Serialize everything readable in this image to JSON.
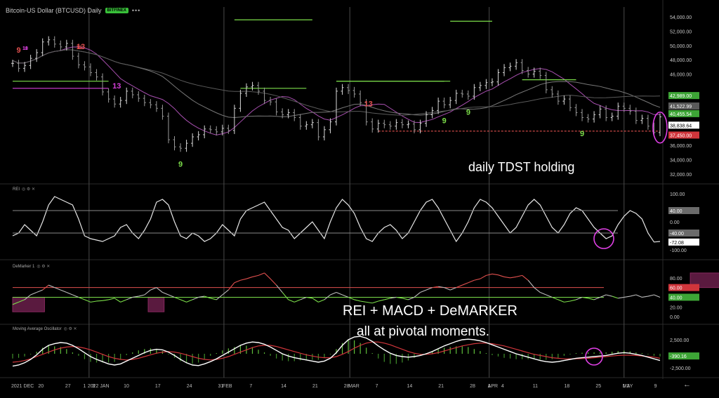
{
  "header": {
    "title": "Bitcoin-US Dollar (BTCUSD) Daily",
    "exchange": "BITFINEX",
    "menu": "•••"
  },
  "panes": {
    "rei_label": "REI",
    "demarker_label": "DeMarker 1",
    "mao_label": "Moving Average Oscillator",
    "icons": "◎ ⚙ ✕"
  },
  "annotations": {
    "tdst": "daily TDST holding",
    "combo_line1": "REI + MACD + DeMARKER",
    "combo_line2": "all at pivotal moments."
  },
  "nav": {
    "back": "←"
  },
  "colors": {
    "bg": "#000000",
    "up": "#7cde4a",
    "down": "#e0504e",
    "magenta": "#d53fd9",
    "grid": "#3a3a3a"
  },
  "chart_data": [
    {
      "type": "line",
      "name": "price",
      "ylim": [
        31000,
        55000
      ],
      "yticks": [
        {
          "v": 54000,
          "label": "54,000.00"
        },
        {
          "v": 52000,
          "label": "52,000.00"
        },
        {
          "v": 50000,
          "label": "50,000.00"
        },
        {
          "v": 48000,
          "label": "48,000.00"
        },
        {
          "v": 46000,
          "label": "46,000.00"
        },
        {
          "v": 36000,
          "label": "36,000.00"
        },
        {
          "v": 34000,
          "label": "34,000.00"
        },
        {
          "v": 32000,
          "label": "32,000.00"
        }
      ],
      "price_tags": [
        {
          "v": 42989.0,
          "label": "42,989.00",
          "color": "#3da536"
        },
        {
          "v": 41522.99,
          "label": "41,522.99",
          "color": "#5a5a5a"
        },
        {
          "v": 40455.54,
          "label": "40,455.54",
          "color": "#3da536"
        },
        {
          "v": 38838.64,
          "label": "38,838.64",
          "color": "#ffffff"
        },
        {
          "v": 37450.0,
          "label": "37,450.00",
          "color": "#d0353b"
        }
      ],
      "close": [
        47500,
        46800,
        47200,
        48200,
        49000,
        50500,
        50800,
        50200,
        49800,
        50300,
        48500,
        47300,
        47000,
        46200,
        45600,
        43500,
        42500,
        41800,
        42300,
        43600,
        43100,
        42600,
        42000,
        41700,
        41200,
        40100,
        36800,
        35800,
        35600,
        36300,
        37200,
        37500,
        38300,
        38200,
        37900,
        38400,
        38100,
        41200,
        43300,
        44200,
        44400,
        43600,
        42300,
        42100,
        40700,
        40300,
        40600,
        39900,
        38700,
        38900,
        39200,
        37200,
        38200,
        39300,
        43600,
        44100,
        43700,
        43200,
        42000,
        39300,
        38300,
        39100,
        38900,
        38700,
        39200,
        38900,
        39000,
        38200,
        39100,
        40300,
        40900,
        42200,
        41700,
        42300,
        43300,
        43200,
        42900,
        44100,
        44400,
        44800,
        44900,
        46200,
        46900,
        47100,
        47600,
        46500,
        46000,
        46400,
        45800,
        43800,
        43200,
        42200,
        42500,
        41300,
        40600,
        39900,
        39700,
        40300,
        41100,
        39900,
        40100,
        41500,
        41200,
        40800,
        39500,
        39800,
        38700,
        37800,
        40000
      ],
      "tdst_levels": [
        {
          "from": 0,
          "to": 16,
          "v": 45000,
          "color": "#7cde4a"
        },
        {
          "from": 0,
          "to": 16,
          "v": 44000,
          "color": "#d53fd9"
        },
        {
          "from": 38,
          "to": 49,
          "v": 44000,
          "color": "#7cde4a"
        },
        {
          "from": 54,
          "to": 73,
          "v": 45000,
          "color": "#7cde4a"
        },
        {
          "from": 54,
          "to": 72,
          "v": 45000,
          "color": "#7cde4a"
        },
        {
          "from": 85,
          "to": 94,
          "v": 45200,
          "color": "#7cde4a"
        },
        {
          "from": 61,
          "to": 108,
          "v": 38000,
          "color": "#e0504e"
        },
        {
          "from": 37,
          "to": 50,
          "v": 53600,
          "color": "#7cde4a"
        },
        {
          "from": 73,
          "to": 80,
          "v": 53400,
          "color": "#7cde4a"
        }
      ],
      "setup_labels": [
        {
          "i": 1,
          "text": "9",
          "color": "#e0504e"
        },
        {
          "i": 2,
          "text": "10",
          "color": "#d53fd9"
        },
        {
          "i": 2,
          "text": "11",
          "color": "#d53fd9"
        },
        {
          "i": 11,
          "text": "12",
          "color": "#e0504e"
        },
        {
          "i": 11,
          "text": "13",
          "color": "#e0504e"
        },
        {
          "i": 17,
          "text": "13",
          "color": "#d53fd9"
        },
        {
          "i": 28,
          "text": "9",
          "color": "#7cde4a"
        },
        {
          "i": 59,
          "text": "13",
          "color": "#e0504e"
        },
        {
          "i": 72,
          "text": "9",
          "color": "#7cde4a"
        },
        {
          "i": 76,
          "text": "9",
          "color": "#7cde4a"
        },
        {
          "i": 95,
          "text": "9",
          "color": "#7cde4a"
        }
      ]
    },
    {
      "type": "line",
      "name": "REI",
      "ylim": [
        -110,
        110
      ],
      "yticks": [
        {
          "v": 100,
          "label": "100.00"
        },
        {
          "v": 40,
          "label": "40.00",
          "tag": true,
          "color": "#6b6b6b"
        },
        {
          "v": 0,
          "label": "0.00"
        },
        {
          "v": -40,
          "label": "-40.00",
          "tag": true,
          "color": "#6b6b6b"
        },
        {
          "v": -72.08,
          "label": "-72.08",
          "tag": true,
          "color": "#ffffff"
        },
        {
          "v": -100,
          "label": "-100.00"
        }
      ],
      "levels": [
        40,
        -40
      ],
      "values": [
        -50,
        -40,
        -10,
        -30,
        -50,
        0,
        60,
        90,
        80,
        70,
        60,
        10,
        -50,
        -60,
        -65,
        -70,
        -60,
        -50,
        -20,
        -10,
        -40,
        -60,
        -30,
        10,
        70,
        80,
        60,
        0,
        -50,
        -60,
        -40,
        -50,
        -70,
        -60,
        -40,
        -10,
        -30,
        -50,
        10,
        40,
        50,
        60,
        70,
        40,
        10,
        -20,
        -30,
        -60,
        -40,
        -20,
        0,
        -30,
        -60,
        0,
        50,
        80,
        60,
        30,
        -20,
        -60,
        -70,
        -40,
        -20,
        -10,
        -30,
        -60,
        -40,
        0,
        40,
        70,
        80,
        50,
        10,
        -30,
        -70,
        -40,
        0,
        50,
        80,
        70,
        50,
        20,
        -10,
        -40,
        -20,
        20,
        60,
        80,
        60,
        20,
        -20,
        -40,
        -10,
        30,
        50,
        40,
        10,
        -20,
        -40,
        -60,
        -50,
        -10,
        20,
        40,
        30,
        10,
        -40,
        -72,
        -70
      ]
    },
    {
      "type": "line",
      "name": "DeMarker 1",
      "ylim": [
        -0.1,
        1.0
      ],
      "yticks": [
        {
          "v": 0.8,
          "label": "80.00"
        },
        {
          "v": 0.6,
          "label": "60.00",
          "tag": true,
          "color": "#d0353b"
        },
        {
          "v": 0.4,
          "label": "40.00",
          "tag": true,
          "color": "#3da536"
        },
        {
          "v": 0.2,
          "label": "20.00"
        },
        {
          "v": 0.0,
          "label": "0.00"
        }
      ],
      "levels": [
        0.6,
        0.4
      ],
      "boxes": [
        {
          "from": 0,
          "to": 4,
          "lo": 0.1,
          "hi": 0.4
        },
        {
          "from": 17,
          "to": 19,
          "lo": 0.1,
          "hi": 0.4
        },
        {
          "from": 85,
          "to": 89,
          "lo": 0.6,
          "hi": 0.9
        }
      ],
      "values": [
        0.25,
        0.3,
        0.35,
        0.45,
        0.5,
        0.55,
        0.65,
        0.6,
        0.55,
        0.5,
        0.45,
        0.4,
        0.35,
        0.3,
        0.32,
        0.33,
        0.35,
        0.38,
        0.3,
        0.35,
        0.4,
        0.42,
        0.45,
        0.55,
        0.6,
        0.5,
        0.45,
        0.4,
        0.35,
        0.3,
        0.35,
        0.4,
        0.42,
        0.38,
        0.35,
        0.45,
        0.55,
        0.7,
        0.75,
        0.78,
        0.82,
        0.85,
        0.9,
        0.78,
        0.65,
        0.5,
        0.35,
        0.3,
        0.35,
        0.4,
        0.38,
        0.3,
        0.35,
        0.45,
        0.5,
        0.45,
        0.4,
        0.35,
        0.32,
        0.3,
        0.28,
        0.32,
        0.35,
        0.38,
        0.4,
        0.38,
        0.35,
        0.4,
        0.5,
        0.55,
        0.6,
        0.62,
        0.6,
        0.55,
        0.6,
        0.65,
        0.7,
        0.75,
        0.78,
        0.85,
        0.88,
        0.86,
        0.82,
        0.8,
        0.82,
        0.85,
        0.75,
        0.6,
        0.5,
        0.45,
        0.4,
        0.35,
        0.3,
        0.32,
        0.35,
        0.4,
        0.38,
        0.35,
        0.4,
        0.45,
        0.42,
        0.38,
        0.4,
        0.42,
        0.45,
        0.4,
        0.42,
        0.45,
        0.4
      ]
    },
    {
      "type": "line",
      "name": "Moving Average Oscillator",
      "ylim": [
        -3500,
        4000
      ],
      "yticks": [
        {
          "v": 2500,
          "label": "2,500.00"
        },
        {
          "v": -390.16,
          "label": "-390.16",
          "tag": true,
          "color": "#3da536"
        },
        {
          "v": -2500,
          "label": "-2,500.00"
        }
      ],
      "fast": [
        -2200,
        -2000,
        -1600,
        -1000,
        -200,
        800,
        1500,
        1800,
        2000,
        1900,
        1500,
        900,
        200,
        -500,
        -1000,
        -1400,
        -1800,
        -2000,
        -1800,
        -1300,
        -800,
        -300,
        200,
        600,
        800,
        700,
        300,
        -300,
        -1000,
        -1600,
        -2000,
        -2100,
        -1800,
        -1400,
        -900,
        -300,
        300,
        900,
        1500,
        1900,
        2100,
        2000,
        1700,
        1200,
        600,
        0,
        -400,
        -700,
        -900,
        -1100,
        -1300,
        -1500,
        -1300,
        -800,
        200,
        1500,
        2500,
        3000,
        3100,
        2800,
        2200,
        1400,
        700,
        100,
        -300,
        -500,
        -600,
        -500,
        -300,
        0,
        400,
        900,
        1400,
        1800,
        2200,
        2500,
        2600,
        2500,
        2300,
        2000,
        1600,
        1200,
        800,
        400,
        0,
        -300,
        -600,
        -900,
        -1200,
        -1400,
        -1500,
        -1400,
        -1200,
        -1000,
        -800,
        -700,
        -600,
        -500,
        -400,
        -300,
        -100,
        100,
        200,
        100,
        -100,
        -300,
        -600,
        -900,
        -1200
      ],
      "slow": [
        -1500,
        -1400,
        -1200,
        -900,
        -500,
        -100,
        300,
        700,
        1000,
        1200,
        1300,
        1200,
        1000,
        700,
        300,
        -100,
        -500,
        -800,
        -1000,
        -1100,
        -1000,
        -800,
        -500,
        -200,
        100,
        300,
        400,
        300,
        100,
        -200,
        -500,
        -800,
        -1000,
        -1100,
        -1000,
        -800,
        -500,
        -100,
        300,
        700,
        1100,
        1400,
        1500,
        1500,
        1300,
        1000,
        700,
        400,
        100,
        -200,
        -400,
        -600,
        -700,
        -700,
        -500,
        -100,
        400,
        1000,
        1500,
        1900,
        2100,
        2100,
        1900,
        1600,
        1200,
        800,
        400,
        100,
        -100,
        -100,
        0,
        200,
        500,
        800,
        1100,
        1400,
        1600,
        1800,
        1900,
        1900,
        1800,
        1600,
        1400,
        1100,
        800,
        500,
        200,
        -100,
        -300,
        -500,
        -700,
        -800,
        -900,
        -900,
        -900,
        -850,
        -800,
        -700,
        -600,
        -500,
        -400,
        -300,
        -250,
        -250,
        -300,
        -400,
        -500,
        -600,
        -800
      ]
    }
  ],
  "x_axis": {
    "ticks": [
      {
        "i": 0,
        "label": "2021 DEC"
      },
      {
        "i": 6,
        "label": "20"
      },
      {
        "i": 12,
        "label": "27"
      },
      {
        "i": 16,
        "label": "1"
      },
      {
        "i": 17,
        "label": "2022 JAN"
      },
      {
        "i": 18,
        "label": "3"
      },
      {
        "i": 25,
        "label": "10"
      },
      {
        "i": 32,
        "label": "17"
      },
      {
        "i": 39,
        "label": "24"
      },
      {
        "i": 46,
        "label": "31"
      },
      {
        "i": 47,
        "label": "FEB"
      },
      {
        "i": 53,
        "label": "7"
      },
      {
        "i": 60,
        "label": "14"
      },
      {
        "i": 67,
        "label": "21"
      },
      {
        "i": 74,
        "label": "28"
      },
      {
        "i": 75,
        "label": "MAR"
      },
      {
        "i": 81,
        "label": "7"
      },
      {
        "i": 88,
        "label": "14"
      },
      {
        "i": 95,
        "label": "21"
      },
      {
        "i": 102,
        "label": "28"
      },
      {
        "i": 106,
        "label": "APR"
      },
      {
        "i": 106,
        "label": "1"
      },
      {
        "i": 109,
        "label": "4"
      },
      {
        "i": 116,
        "label": "11"
      },
      {
        "i": 123,
        "label": "18"
      },
      {
        "i": 130,
        "label": "25"
      },
      {
        "i": 136,
        "label": "MAY"
      },
      {
        "i": 136,
        "label": "1 2"
      },
      {
        "i": 143,
        "label": "9"
      }
    ],
    "separators": [
      17,
      47,
      75,
      106,
      136
    ]
  }
}
